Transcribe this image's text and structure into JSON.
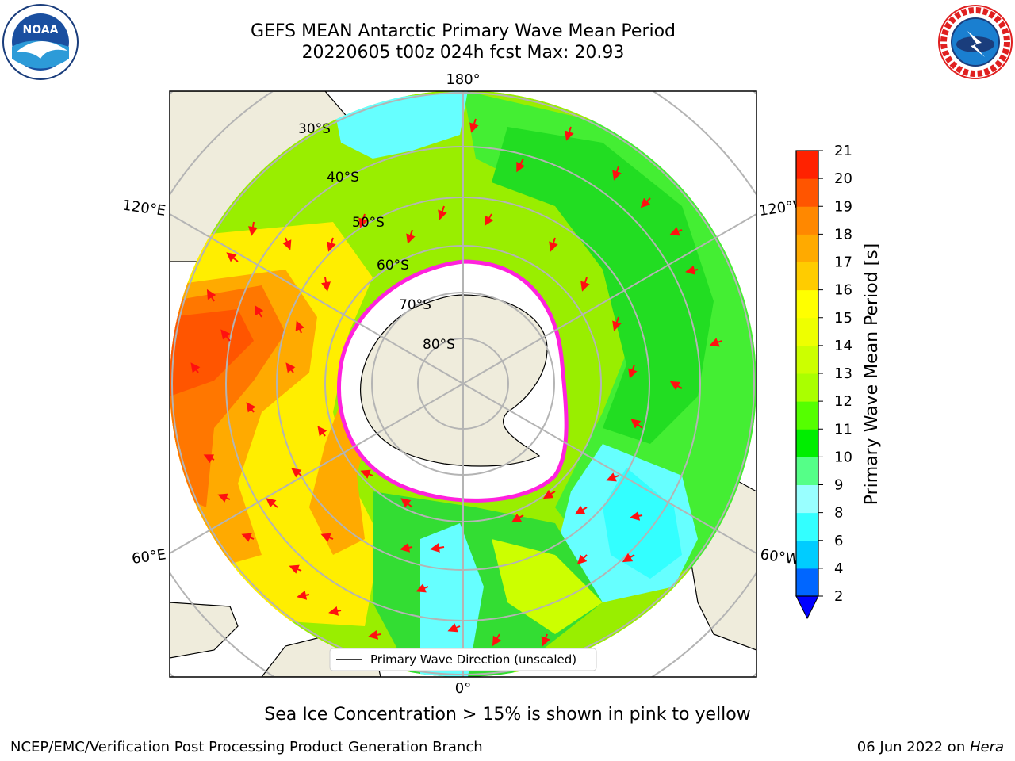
{
  "header": {
    "title_line1": "GEFS MEAN Antarctic Primary Wave Mean Period",
    "title_line2": "20220605 t00z 024h fcst   Max: 20.93"
  },
  "logos": {
    "left": "noaa-logo",
    "right": "national-weather-service-logo",
    "noaa_text": "NOAA",
    "noaa_ring_text": "NATIONAL OCEANIC AND ATMOSPHERIC ADMINISTRATION · U.S. DEPARTMENT OF COMMERCE",
    "nws_ring_text": "NATIONAL WEATHER SERVICE"
  },
  "map": {
    "projection": "south-polar-stereographic",
    "longitude_labels": {
      "top": "180°",
      "bottom": "0°",
      "upper_left": "120°E",
      "lower_left": "60°E",
      "upper_right": "120°W",
      "lower_right": "60°W"
    },
    "latitude_labels": [
      "30°S",
      "40°S",
      "50°S",
      "60°S",
      "70°S",
      "80°S"
    ],
    "legend": {
      "line_label": "Primary Wave Direction (unscaled)"
    },
    "colors": {
      "land": "#efecdc",
      "ice": "#ffffff",
      "ice_edge": "#ff22dd",
      "graticule": "#b4b4b4",
      "arrow": "#ff1010"
    }
  },
  "colorbar": {
    "label": "Primary Wave Mean Period [s]",
    "ticks": [
      "2",
      "4",
      "6",
      "8",
      "9",
      "10",
      "11",
      "12",
      "13",
      "14",
      "15",
      "16",
      "17",
      "18",
      "19",
      "20",
      "21"
    ],
    "colors": [
      "#0066ff",
      "#00ccff",
      "#33ffff",
      "#99ffff",
      "#55ff88",
      "#00ee00",
      "#55ff00",
      "#aaff00",
      "#ccff00",
      "#eeff00",
      "#ffff00",
      "#ffcc00",
      "#ffaa00",
      "#ff8800",
      "#ff5500",
      "#ff2200"
    ],
    "under_color": "#0000ff",
    "over_color": "#ff0000"
  },
  "caption": "Sea Ice Concentration > 15% is shown in pink to yellow",
  "footer": {
    "left": "NCEP/EMC/Verification Post Processing Product Generation Branch",
    "right_prefix": "06 Jun 2022 on ",
    "right_machine": "Hera"
  }
}
